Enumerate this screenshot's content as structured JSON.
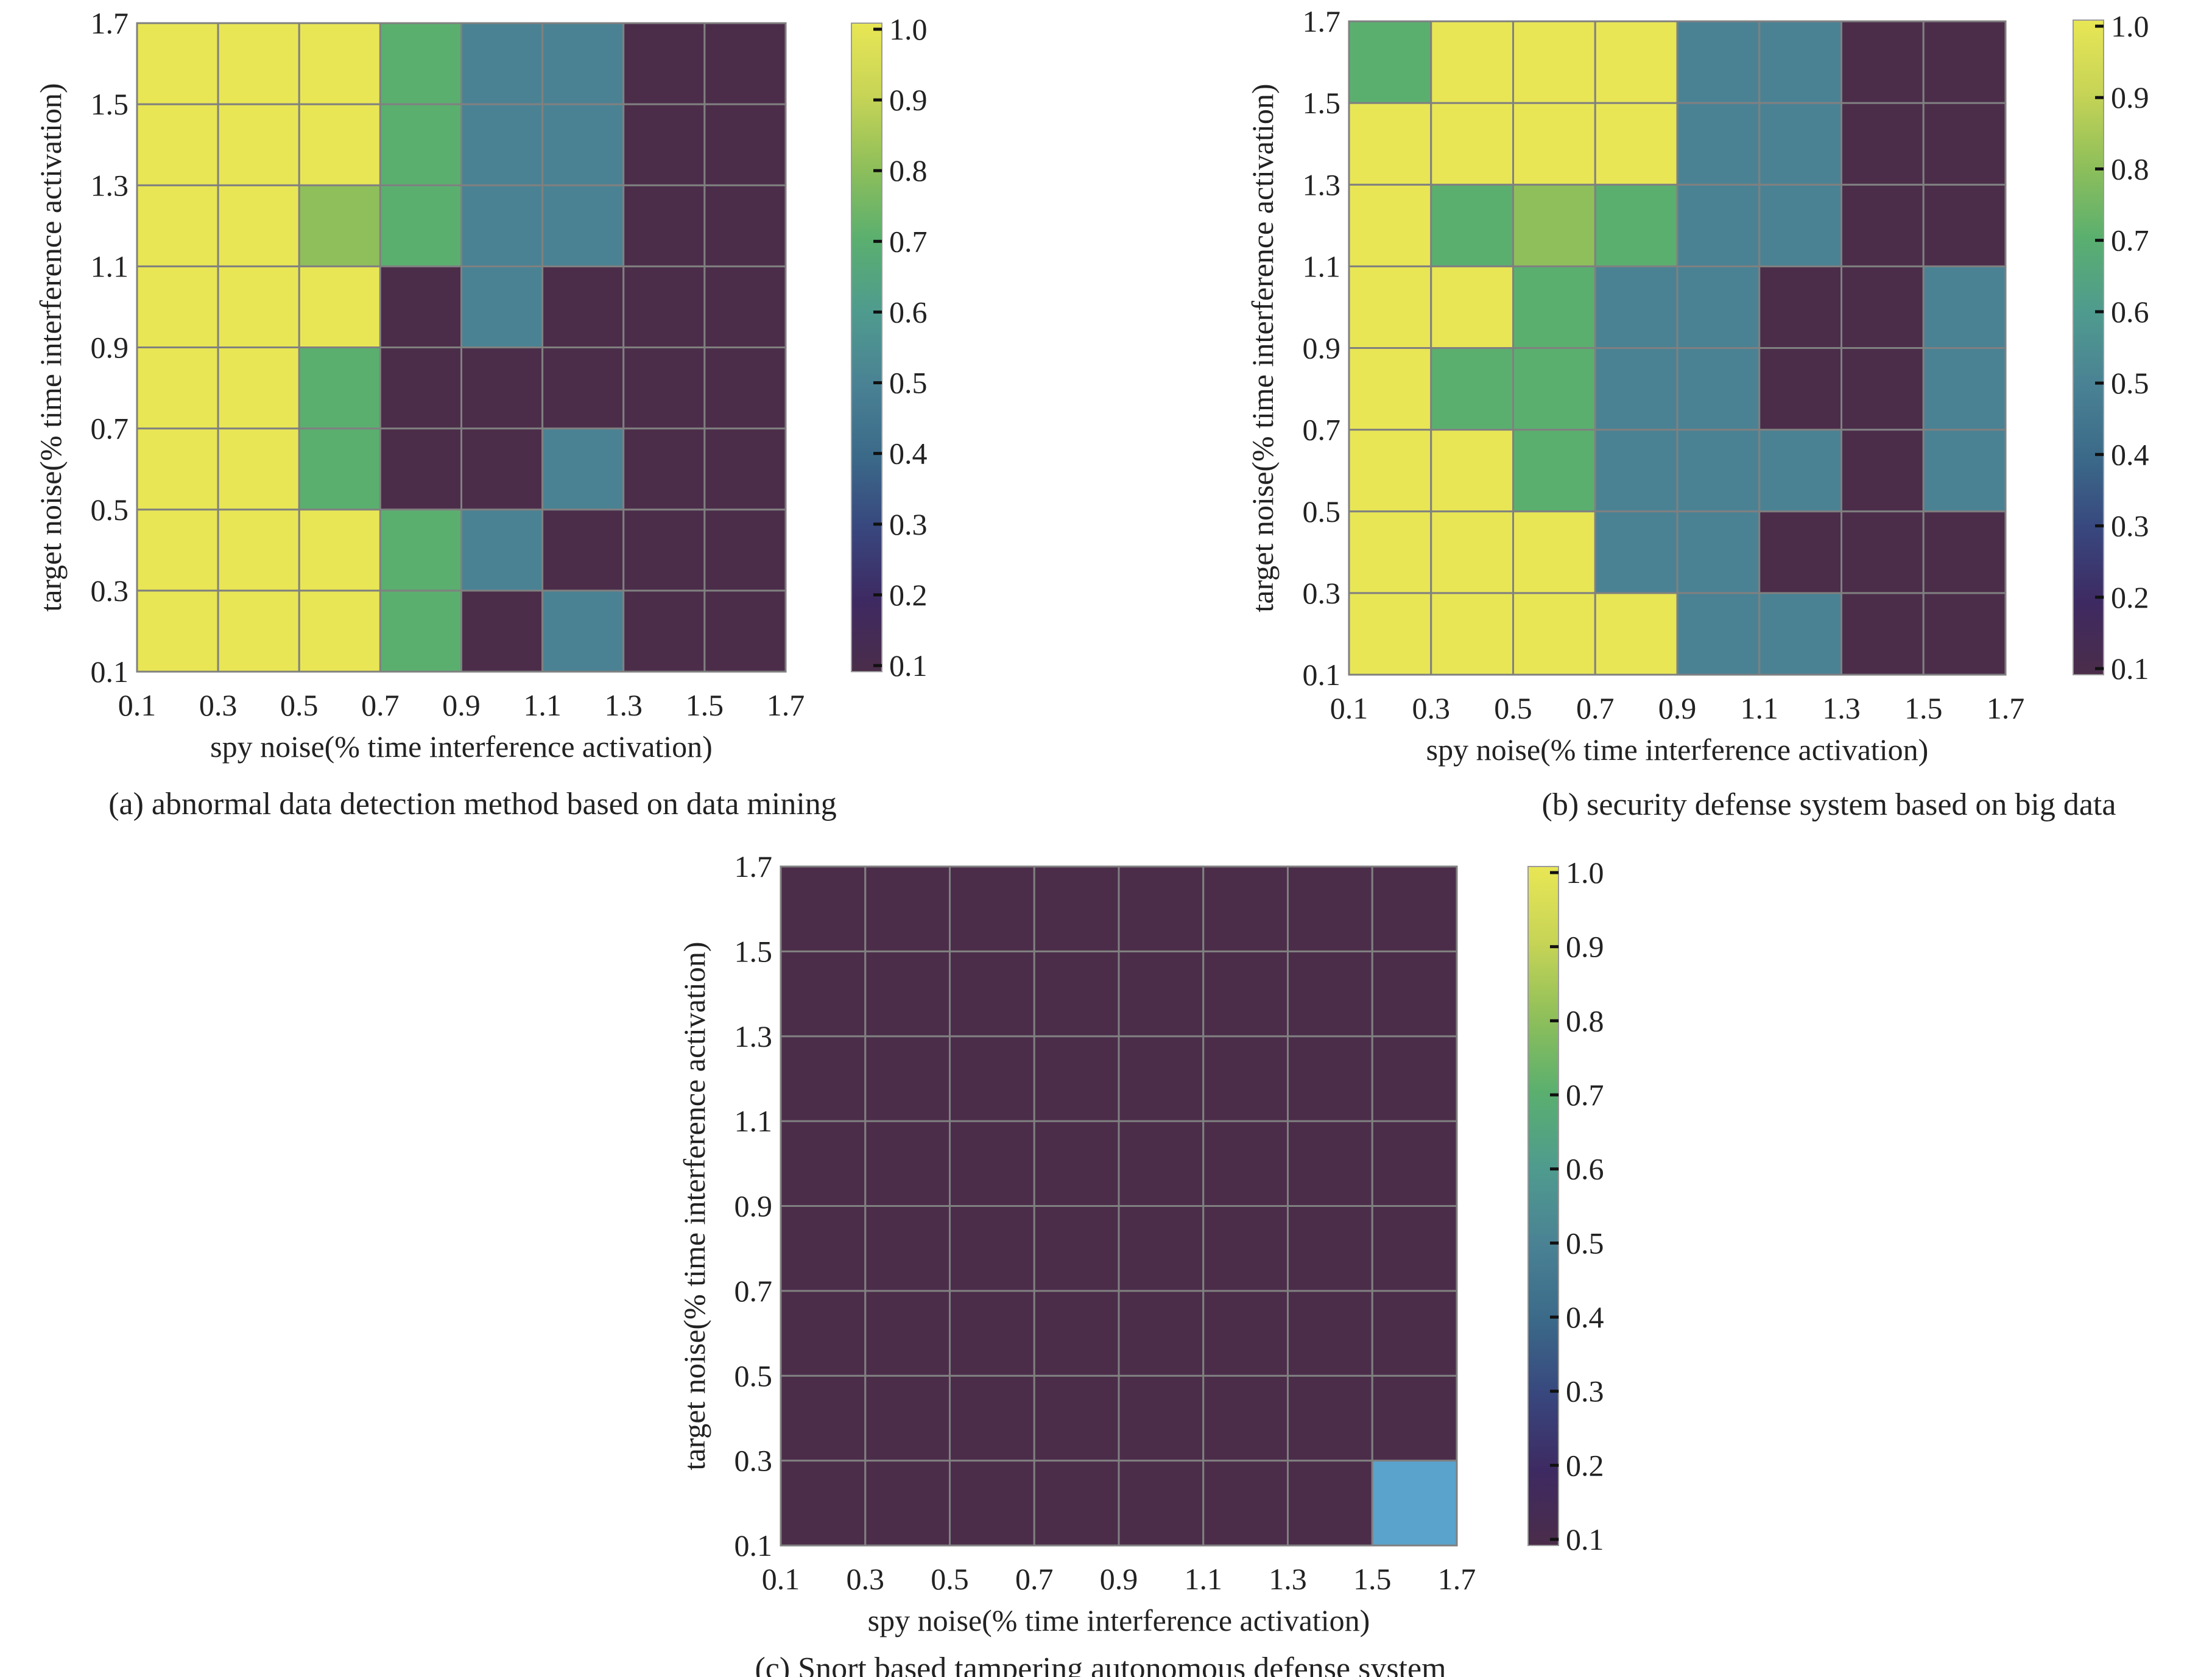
{
  "chart_data": [
    {
      "type": "heatmap",
      "caption": "(a) abnormal data detection method based on data mining",
      "xlabel": "spy noise(% time interference activation)",
      "ylabel": "target noise(% time interference activation)",
      "x_ticks": [
        "0.1",
        "0.3",
        "0.5",
        "0.7",
        "0.9",
        "1.1",
        "1.3",
        "1.5",
        "1.7"
      ],
      "y_ticks": [
        "0.1",
        "0.3",
        "0.5",
        "0.7",
        "0.9",
        "1.1",
        "1.3",
        "1.5",
        "1.7"
      ],
      "x_range": [
        0.1,
        1.7
      ],
      "y_range": [
        0.1,
        1.7
      ],
      "colorbar": {
        "min": 0.1,
        "max": 1.0,
        "ticks": [
          "0.1",
          "0.2",
          "0.3",
          "0.4",
          "0.5",
          "0.6",
          "0.7",
          "0.8",
          "0.9",
          "1.0"
        ],
        "colormap": "viridis"
      },
      "cell_edges": [
        0.1,
        0.3,
        0.5,
        0.7,
        0.9,
        1.1,
        1.3,
        1.5,
        1.7
      ],
      "z_rows_bottom_to_top": [
        [
          1.0,
          1.0,
          1.0,
          0.7,
          0.1,
          0.5,
          0.1,
          0.1
        ],
        [
          1.0,
          1.0,
          1.0,
          0.7,
          0.5,
          0.1,
          0.1,
          0.1
        ],
        [
          1.0,
          1.0,
          0.7,
          0.1,
          0.1,
          0.5,
          0.1,
          0.1
        ],
        [
          1.0,
          1.0,
          0.7,
          0.1,
          0.1,
          0.1,
          0.1,
          0.1
        ],
        [
          1.0,
          1.0,
          1.0,
          0.1,
          0.5,
          0.1,
          0.1,
          0.1
        ],
        [
          1.0,
          1.0,
          0.8,
          0.7,
          0.5,
          0.5,
          0.1,
          0.1
        ],
        [
          1.0,
          1.0,
          1.0,
          0.7,
          0.5,
          0.5,
          0.1,
          0.1
        ],
        [
          1.0,
          1.0,
          1.0,
          0.7,
          0.5,
          0.5,
          0.1,
          0.1
        ]
      ]
    },
    {
      "type": "heatmap",
      "caption": "(b) security defense system based on big data",
      "xlabel": "spy noise(% time interference activation)",
      "ylabel": "target noise(% time interference activation)",
      "x_ticks": [
        "0.1",
        "0.3",
        "0.5",
        "0.7",
        "0.9",
        "1.1",
        "1.3",
        "1.5",
        "1.7"
      ],
      "y_ticks": [
        "0.1",
        "0.3",
        "0.5",
        "0.7",
        "0.9",
        "1.1",
        "1.3",
        "1.5",
        "1.7"
      ],
      "x_range": [
        0.1,
        1.7
      ],
      "y_range": [
        0.1,
        1.7
      ],
      "colorbar": {
        "min": 0.1,
        "max": 1.0,
        "ticks": [
          "0.1",
          "0.2",
          "0.3",
          "0.4",
          "0.5",
          "0.6",
          "0.7",
          "0.8",
          "0.9",
          "1.0"
        ],
        "colormap": "viridis"
      },
      "cell_edges": [
        0.1,
        0.3,
        0.5,
        0.7,
        0.9,
        1.1,
        1.3,
        1.5,
        1.7
      ],
      "z_rows_bottom_to_top": [
        [
          1.0,
          1.0,
          1.0,
          1.0,
          0.5,
          0.5,
          0.1,
          0.1
        ],
        [
          1.0,
          1.0,
          1.0,
          0.5,
          0.5,
          0.1,
          0.1,
          0.1
        ],
        [
          1.0,
          1.0,
          0.7,
          0.5,
          0.5,
          0.5,
          0.1,
          0.5
        ],
        [
          1.0,
          0.7,
          0.7,
          0.5,
          0.5,
          0.1,
          0.1,
          0.5
        ],
        [
          1.0,
          1.0,
          0.7,
          0.5,
          0.5,
          0.1,
          0.1,
          0.5
        ],
        [
          1.0,
          0.7,
          0.8,
          0.7,
          0.5,
          0.5,
          0.1,
          0.1
        ],
        [
          1.0,
          1.0,
          1.0,
          1.0,
          0.5,
          0.5,
          0.1,
          0.1
        ],
        [
          0.7,
          1.0,
          1.0,
          1.0,
          0.5,
          0.5,
          0.1,
          0.1
        ]
      ]
    },
    {
      "type": "heatmap",
      "caption": "(c) Snort based tampering autonomous defense system",
      "xlabel": "spy noise(% time interference activation)",
      "ylabel": "target noise(% time interference activation)",
      "x_ticks": [
        "0.1",
        "0.3",
        "0.5",
        "0.7",
        "0.9",
        "1.1",
        "1.3",
        "1.5",
        "1.7"
      ],
      "y_ticks": [
        "0.1",
        "0.3",
        "0.5",
        "0.7",
        "0.9",
        "1.1",
        "1.3",
        "1.5",
        "1.7"
      ],
      "x_range": [
        0.1,
        1.7
      ],
      "y_range": [
        0.1,
        1.7
      ],
      "colorbar": {
        "min": 0.1,
        "max": 1.0,
        "ticks": [
          "0.1",
          "0.2",
          "0.3",
          "0.4",
          "0.5",
          "0.6",
          "0.7",
          "0.8",
          "0.9",
          "1.0"
        ],
        "colormap": "viridis"
      },
      "cell_edges": [
        0.1,
        0.3,
        0.5,
        0.7,
        0.9,
        1.1,
        1.3,
        1.5,
        1.7
      ],
      "z_rows_bottom_to_top": [
        [
          0.1,
          0.1,
          0.1,
          0.1,
          0.1,
          0.1,
          0.1,
          0.45
        ],
        [
          0.1,
          0.1,
          0.1,
          0.1,
          0.1,
          0.1,
          0.1,
          0.1
        ],
        [
          0.1,
          0.1,
          0.1,
          0.1,
          0.1,
          0.1,
          0.1,
          0.1
        ],
        [
          0.1,
          0.1,
          0.1,
          0.1,
          0.1,
          0.1,
          0.1,
          0.1
        ],
        [
          0.1,
          0.1,
          0.1,
          0.1,
          0.1,
          0.1,
          0.1,
          0.1
        ],
        [
          0.1,
          0.1,
          0.1,
          0.1,
          0.1,
          0.1,
          0.1,
          0.1
        ],
        [
          0.1,
          0.1,
          0.1,
          0.1,
          0.1,
          0.1,
          0.1,
          0.1
        ],
        [
          0.1,
          0.1,
          0.1,
          0.1,
          0.1,
          0.1,
          0.1,
          0.1
        ]
      ]
    }
  ],
  "colors": {
    "low": "#4b2d4a",
    "mid": "#4a8294",
    "green": "#5aaf6f",
    "lightgreen": "#8fbf5a",
    "high": "#e8e655",
    "highlight": "#5aa3cd",
    "grid": "#808080"
  }
}
